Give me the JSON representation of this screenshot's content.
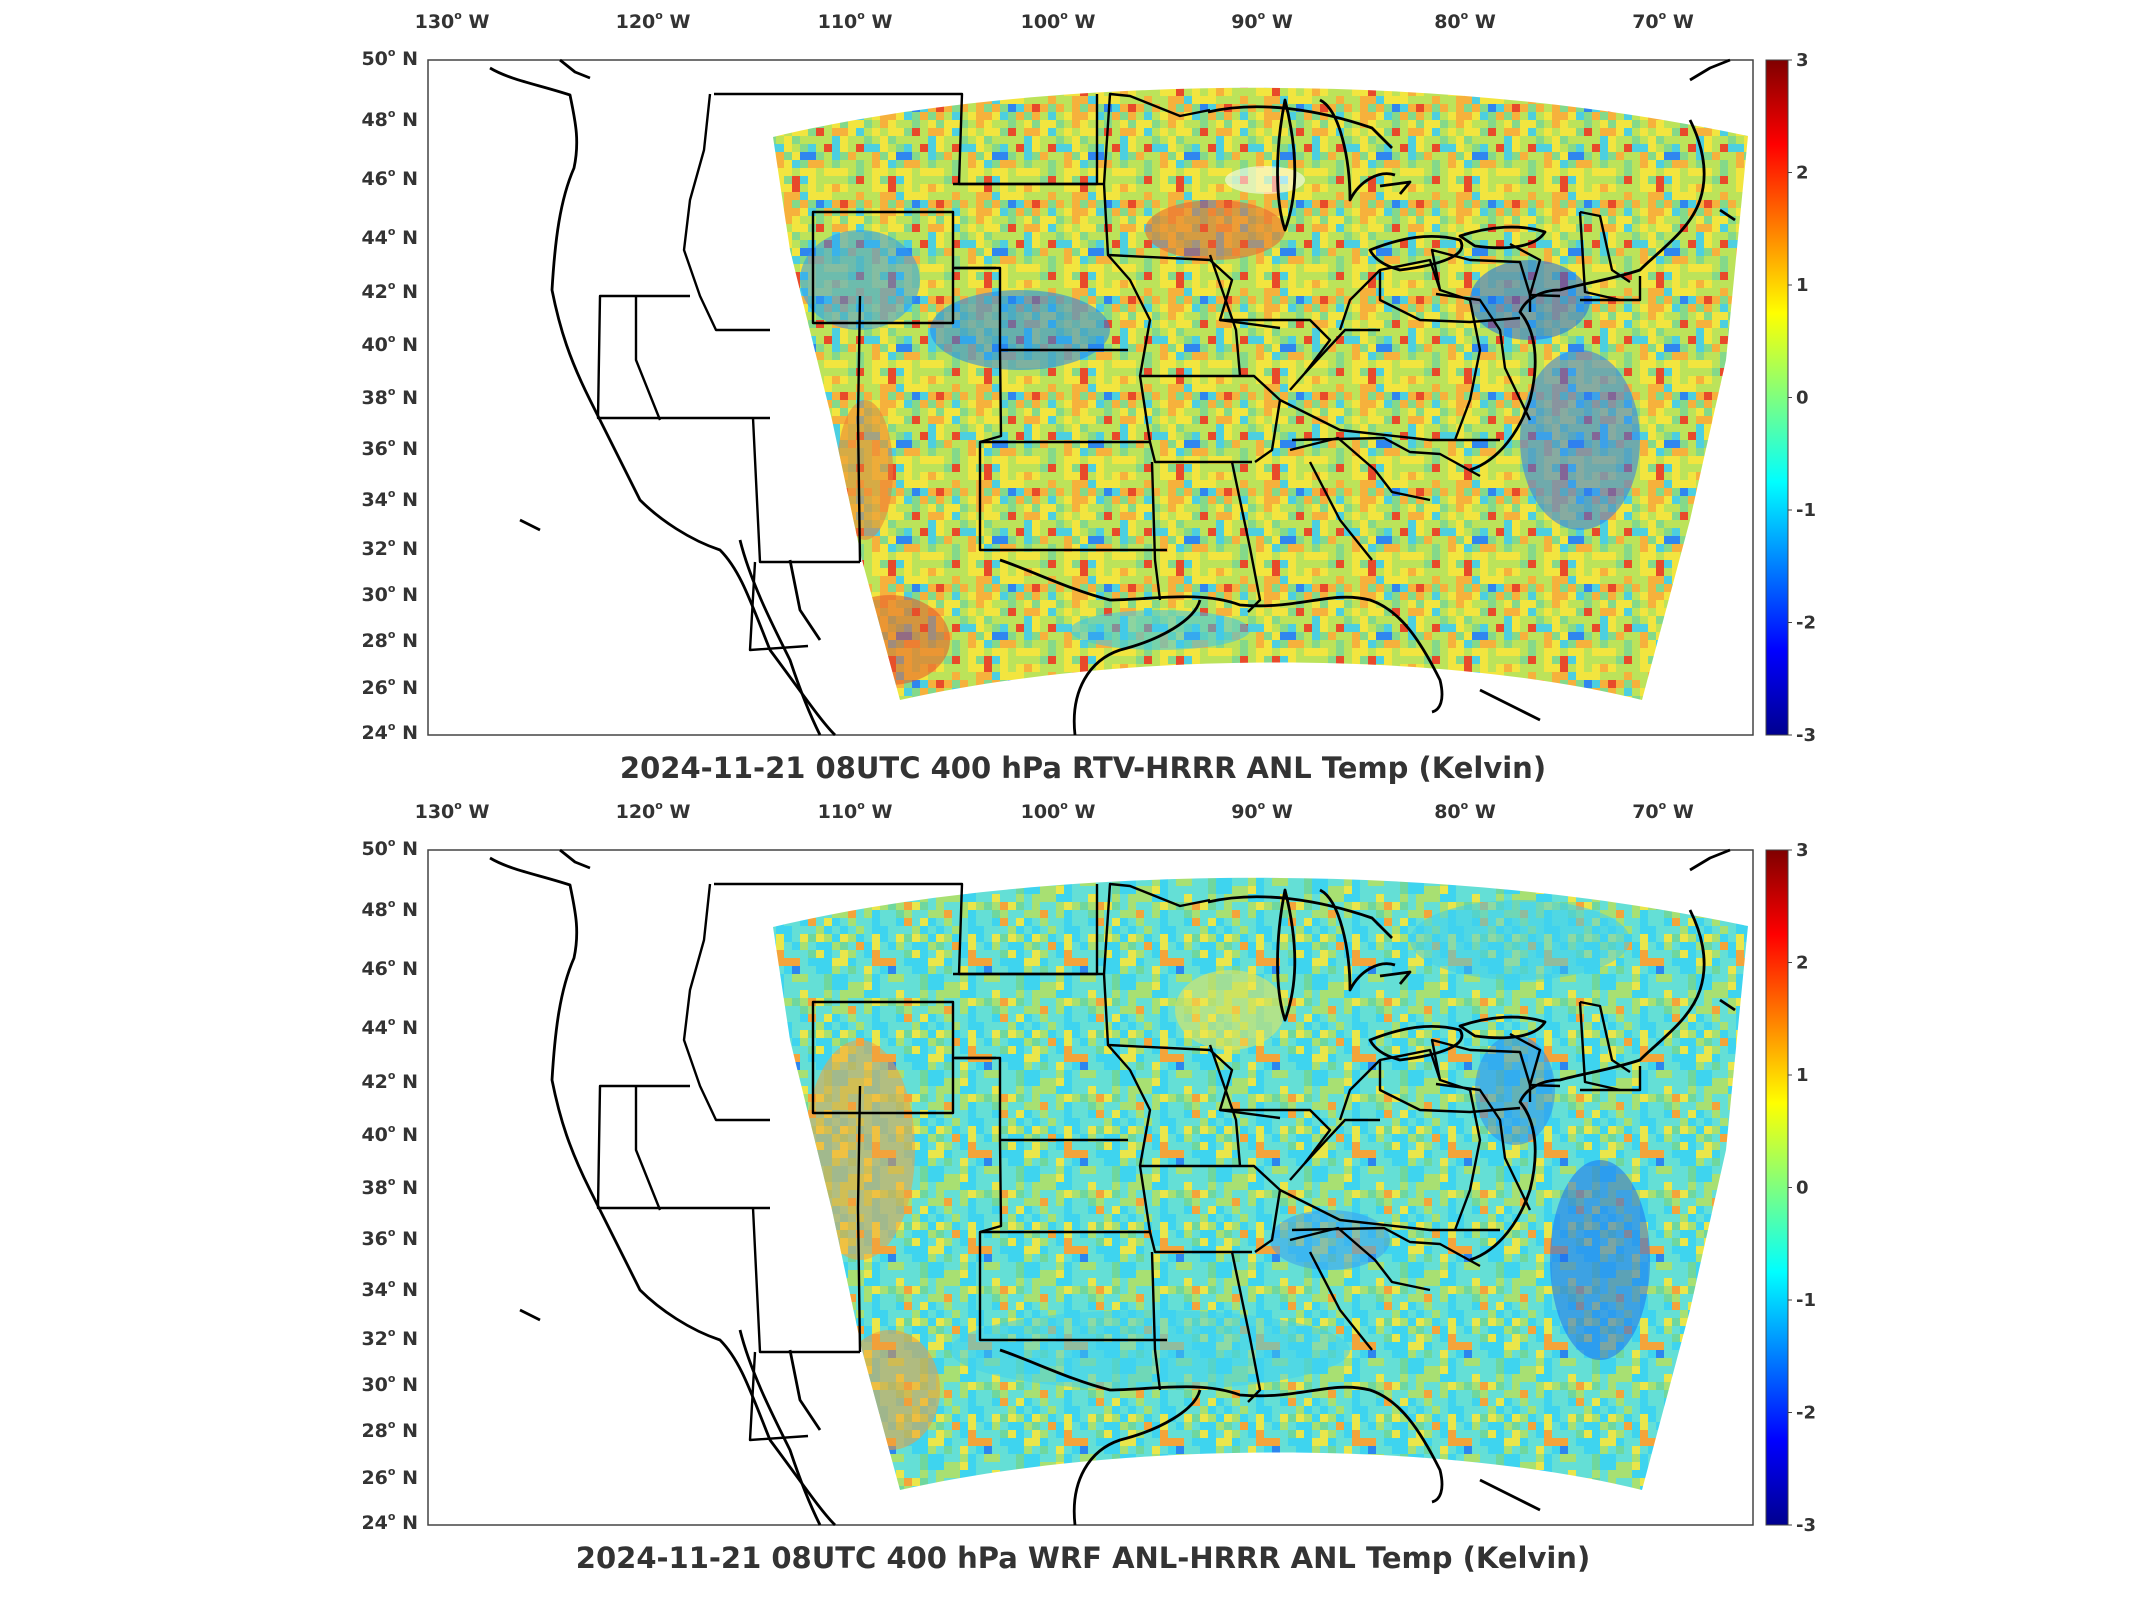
{
  "panels": [
    {
      "id": "top",
      "title": "2024-11-21 08UTC 400 hPa RTV-HRRR ANL Temp (Kelvin)",
      "palette": [
        "#bce35a",
        "#f2e53f",
        "#84d98a",
        "#f6b13c",
        "#4ccfe0",
        "#e84a2a",
        "#2f86ef"
      ]
    },
    {
      "id": "bottom",
      "title": "2024-11-21 08UTC 400 hPa WRF ANL-HRRR ANL Temp (Kelvin)",
      "palette": [
        "#64dfd6",
        "#3ed4ef",
        "#a8e072",
        "#eae64a",
        "#6fd79e",
        "#f4a43a",
        "#2c86ee"
      ]
    }
  ],
  "axes": {
    "longitude_labels": [
      "130",
      "120",
      "110",
      "100",
      "90",
      "80",
      "70"
    ],
    "longitude_suffix": "W",
    "latitude_labels": [
      "50",
      "48",
      "46",
      "44",
      "42",
      "40",
      "38",
      "36",
      "34",
      "32",
      "30",
      "28",
      "26",
      "24"
    ],
    "latitude_suffix": "N",
    "degree_symbol": "o"
  },
  "colorbar": {
    "ticks": [
      "3",
      "2",
      "1",
      "0",
      "-1",
      "-2",
      "-3"
    ],
    "colors": [
      "#7f0000",
      "#ff0000",
      "#ff7f00",
      "#ffff00",
      "#7fff7f",
      "#00ffff",
      "#007fff",
      "#0000ff",
      "#00008f"
    ]
  }
}
